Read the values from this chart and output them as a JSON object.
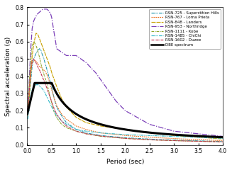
{
  "xlabel": "Period (sec)",
  "ylabel": "Spectral acceleration (g)",
  "xlim": [
    0,
    4
  ],
  "ylim": [
    0,
    0.8
  ],
  "xticks": [
    0,
    0.5,
    1,
    1.5,
    2,
    2.5,
    3,
    3.5,
    4
  ],
  "yticks": [
    0,
    0.1,
    0.2,
    0.3,
    0.4,
    0.5,
    0.6,
    0.7,
    0.8
  ],
  "legend_entries": [
    "RSN-725 - Superstition Hills",
    "RSN-767 - Loma Prieta",
    "RSN-848 - Landers",
    "RSN-953 - Northridge",
    "RSN-1111 - Kobe",
    "RSN-1485 - ChiChi",
    "RSN-1602 - Duzee",
    "DBE spectrum"
  ],
  "line_colors": [
    "#2196B0",
    "#E87020",
    "#C8A000",
    "#7B3FB8",
    "#90A830",
    "#30B8C8",
    "#C03050",
    "#000000"
  ],
  "line_widths": [
    0.8,
    0.8,
    0.8,
    0.9,
    0.8,
    0.8,
    0.8,
    2.2
  ],
  "rsn725_T": [
    0.01,
    0.04,
    0.07,
    0.1,
    0.13,
    0.16,
    0.19,
    0.22,
    0.25,
    0.28,
    0.3,
    0.33,
    0.36,
    0.4,
    0.45,
    0.5,
    0.55,
    0.6,
    0.7,
    0.8,
    0.9,
    1.0,
    1.2,
    1.5,
    2.0,
    2.5,
    3.0,
    4.0
  ],
  "rsn725_Sa": [
    0.19,
    0.27,
    0.37,
    0.46,
    0.5,
    0.52,
    0.54,
    0.55,
    0.56,
    0.55,
    0.53,
    0.51,
    0.48,
    0.44,
    0.39,
    0.33,
    0.27,
    0.22,
    0.17,
    0.13,
    0.11,
    0.09,
    0.07,
    0.055,
    0.042,
    0.034,
    0.028,
    0.02
  ],
  "rsn767_T": [
    0.01,
    0.04,
    0.07,
    0.1,
    0.13,
    0.16,
    0.2,
    0.24,
    0.28,
    0.32,
    0.36,
    0.4,
    0.45,
    0.5,
    0.55,
    0.6,
    0.7,
    0.8,
    1.0,
    1.2,
    1.5,
    2.0,
    2.5,
    3.0,
    4.0
  ],
  "rsn767_Sa": [
    0.21,
    0.34,
    0.43,
    0.48,
    0.49,
    0.49,
    0.48,
    0.46,
    0.45,
    0.44,
    0.43,
    0.41,
    0.37,
    0.32,
    0.27,
    0.23,
    0.18,
    0.15,
    0.11,
    0.09,
    0.07,
    0.055,
    0.045,
    0.037,
    0.025
  ],
  "rsn848_T": [
    0.01,
    0.04,
    0.07,
    0.1,
    0.14,
    0.18,
    0.22,
    0.26,
    0.3,
    0.34,
    0.38,
    0.42,
    0.46,
    0.5,
    0.6,
    0.7,
    0.8,
    1.0,
    1.2,
    1.5,
    2.0,
    2.5,
    3.0,
    4.0
  ],
  "rsn848_Sa": [
    0.17,
    0.28,
    0.4,
    0.52,
    0.6,
    0.65,
    0.64,
    0.61,
    0.58,
    0.55,
    0.52,
    0.49,
    0.46,
    0.42,
    0.34,
    0.27,
    0.22,
    0.16,
    0.13,
    0.11,
    0.09,
    0.07,
    0.055,
    0.035
  ],
  "rsn953_T": [
    0.01,
    0.04,
    0.07,
    0.1,
    0.13,
    0.16,
    0.2,
    0.24,
    0.28,
    0.32,
    0.36,
    0.4,
    0.44,
    0.48,
    0.5,
    0.52,
    0.55,
    0.58,
    0.6,
    0.65,
    0.7,
    0.75,
    0.8,
    0.9,
    1.0,
    1.1,
    1.2,
    1.4,
    1.6,
    1.8,
    2.0,
    2.5,
    3.0,
    4.0
  ],
  "rsn953_Sa": [
    0.2,
    0.38,
    0.56,
    0.68,
    0.72,
    0.74,
    0.76,
    0.77,
    0.78,
    0.79,
    0.79,
    0.79,
    0.78,
    0.76,
    0.74,
    0.7,
    0.65,
    0.6,
    0.56,
    0.55,
    0.54,
    0.53,
    0.52,
    0.52,
    0.52,
    0.5,
    0.48,
    0.42,
    0.34,
    0.26,
    0.2,
    0.12,
    0.08,
    0.05
  ],
  "rsn1111_T": [
    0.01,
    0.04,
    0.07,
    0.1,
    0.13,
    0.16,
    0.19,
    0.22,
    0.25,
    0.28,
    0.31,
    0.35,
    0.4,
    0.45,
    0.5,
    0.55,
    0.6,
    0.7,
    0.8,
    1.0,
    1.2,
    1.5,
    2.0,
    2.5,
    3.0,
    4.0
  ],
  "rsn1111_Sa": [
    0.22,
    0.36,
    0.5,
    0.58,
    0.6,
    0.59,
    0.57,
    0.54,
    0.51,
    0.47,
    0.44,
    0.4,
    0.36,
    0.3,
    0.24,
    0.19,
    0.16,
    0.12,
    0.1,
    0.08,
    0.065,
    0.05,
    0.038,
    0.03,
    0.025,
    0.018
  ],
  "rsn1485_T": [
    0.01,
    0.04,
    0.07,
    0.1,
    0.14,
    0.18,
    0.22,
    0.26,
    0.3,
    0.35,
    0.4,
    0.45,
    0.5,
    0.6,
    0.7,
    0.8,
    1.0,
    1.2,
    1.5,
    2.0,
    2.5,
    3.0,
    4.0
  ],
  "rsn1485_Sa": [
    0.15,
    0.22,
    0.28,
    0.32,
    0.34,
    0.35,
    0.35,
    0.34,
    0.33,
    0.31,
    0.28,
    0.25,
    0.22,
    0.17,
    0.14,
    0.12,
    0.09,
    0.08,
    0.07,
    0.06,
    0.055,
    0.05,
    0.038
  ],
  "rsn1602_T": [
    0.01,
    0.04,
    0.07,
    0.1,
    0.13,
    0.16,
    0.19,
    0.22,
    0.26,
    0.3,
    0.35,
    0.4,
    0.45,
    0.5,
    0.55,
    0.6,
    0.7,
    0.8,
    1.0,
    1.2,
    1.5,
    2.0,
    2.5,
    3.0,
    4.0
  ],
  "rsn1602_Sa": [
    0.19,
    0.32,
    0.43,
    0.49,
    0.5,
    0.49,
    0.47,
    0.45,
    0.43,
    0.4,
    0.37,
    0.33,
    0.29,
    0.25,
    0.21,
    0.18,
    0.14,
    0.11,
    0.08,
    0.065,
    0.052,
    0.038,
    0.03,
    0.025,
    0.018
  ]
}
